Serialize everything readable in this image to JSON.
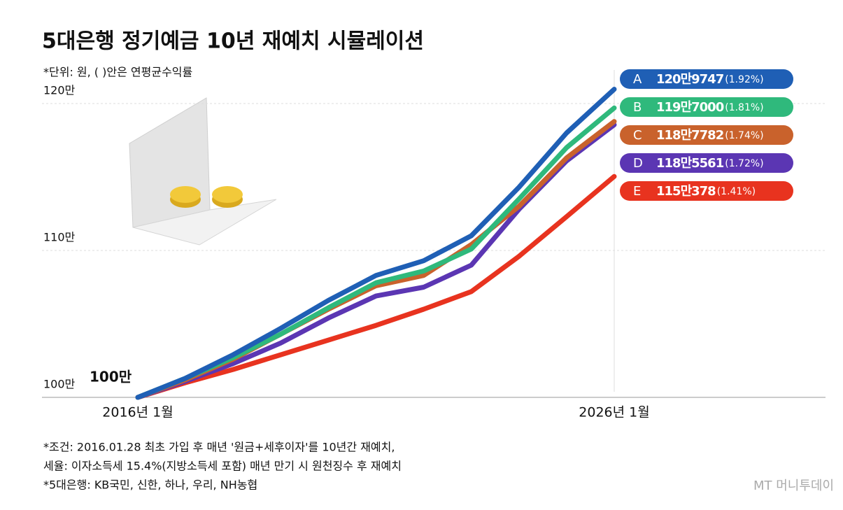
{
  "chart_data": {
    "type": "line",
    "title": "5대은행 정기예금 10년 재예치 시뮬레이션",
    "subtitle": "*단위: 원, ( )안은 연평균수익률",
    "start_label": "100만",
    "categories": [
      "2016년 1월",
      null,
      null,
      null,
      null,
      null,
      null,
      null,
      null,
      null,
      "2026년 1월"
    ],
    "ylim": [
      1000000,
      1225000
    ],
    "yticks": [
      {
        "value": 1000000,
        "label": "100만"
      },
      {
        "value": 1100000,
        "label": "110만"
      },
      {
        "value": 1200000,
        "label": "120만"
      }
    ],
    "grid": true,
    "series": [
      {
        "name": "A",
        "color": "#1f5fb5",
        "rate": "(1.92%)",
        "values": [
          1000000,
          1013000,
          1029000,
          1047000,
          1066000,
          1083000,
          1093000,
          1110000,
          1143000,
          1180000,
          1209747
        ],
        "value_labels": [
          null,
          null,
          null,
          null,
          null,
          null,
          null,
          null,
          null,
          null,
          "120만9747"
        ]
      },
      {
        "name": "B",
        "color": "#2fb97c",
        "rate": "(1.81%)",
        "values": [
          1000000,
          1013000,
          1027000,
          1043000,
          1061000,
          1078000,
          1086000,
          1101000,
          1135000,
          1170000,
          1197000
        ],
        "value_labels": [
          null,
          null,
          null,
          null,
          null,
          null,
          null,
          null,
          null,
          null,
          "119만7000"
        ]
      },
      {
        "name": "C",
        "color": "#c9622c",
        "rate": "(1.74%)",
        "values": [
          1000000,
          1012000,
          1026000,
          1043000,
          1060000,
          1076000,
          1083000,
          1104000,
          1130000,
          1163000,
          1187782
        ],
        "value_labels": [
          null,
          null,
          null,
          null,
          null,
          null,
          null,
          null,
          null,
          null,
          "118만7782"
        ]
      },
      {
        "name": "D",
        "color": "#5b36b3",
        "rate": "(1.72%)",
        "values": [
          1000000,
          1011000,
          1023000,
          1037000,
          1054000,
          1069000,
          1075000,
          1090000,
          1128000,
          1161000,
          1185561
        ],
        "value_labels": [
          null,
          null,
          null,
          null,
          null,
          null,
          null,
          null,
          null,
          null,
          "118만5561"
        ]
      },
      {
        "name": "E",
        "color": "#e8331f",
        "rate": "(1.41%)",
        "values": [
          1000000,
          1010000,
          1019000,
          1029000,
          1039000,
          1049000,
          1060000,
          1072000,
          1096000,
          1123000,
          1150378
        ],
        "value_labels": [
          null,
          null,
          null,
          null,
          null,
          null,
          null,
          null,
          null,
          null,
          "115만378"
        ]
      }
    ],
    "footnotes": [
      "*조건: 2016.01.28 최초 가입 후 매년 '원금+세후이자'를 10년간 재예치,",
      "세율: 이자소득세 15.4%(지방소득세 포함) 매년 만기 시 원천징수 후 재예치",
      "*5대은행: KB국민, 신한, 하나, 우리, NH농협"
    ],
    "source": "MT 머니투데이"
  }
}
